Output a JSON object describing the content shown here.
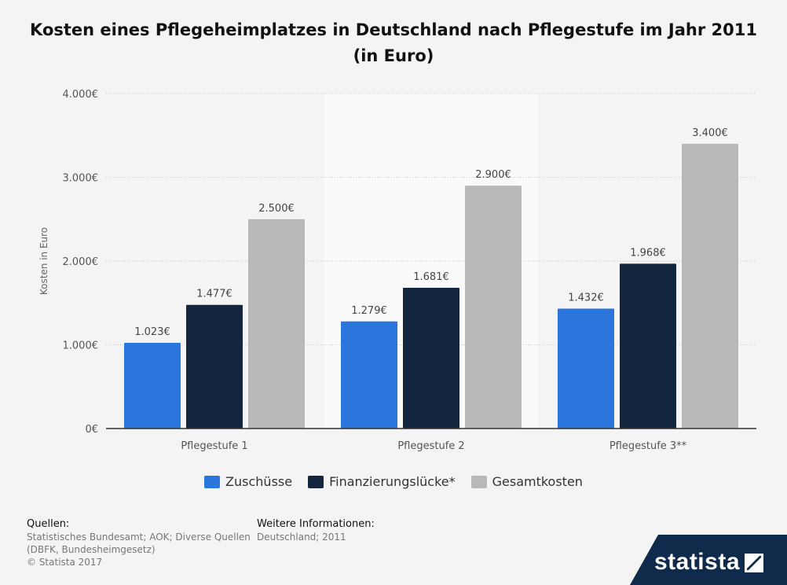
{
  "title": "Kosten eines Pflegeheimplatzes in Deutschland nach Pflegestufe im Jahr 2011 (in Euro)",
  "chart_data": {
    "type": "bar",
    "title": "Kosten eines Pflegeheimplatzes in Deutschland nach Pflegestufe im Jahr 2011 (in Euro)",
    "xlabel": "",
    "ylabel": "Kosten in Euro",
    "ylim": [
      0,
      4000
    ],
    "yticks": [
      0,
      1000,
      2000,
      3000,
      4000
    ],
    "ytick_labels": [
      "0€",
      "1.000€",
      "2.000€",
      "3.000€",
      "4.000€"
    ],
    "categories": [
      "Pflegestufe 1",
      "Pflegestufe 2",
      "Pflegestufe 3**"
    ],
    "series": [
      {
        "name": "Zuschüsse",
        "color": "#2a76dd",
        "values": [
          1023,
          1279,
          1432
        ],
        "labels": [
          "1.023€",
          "1.279€",
          "1.432€"
        ]
      },
      {
        "name": "Finanzierungslücke*",
        "color": "#13263e",
        "values": [
          1477,
          1681,
          1968
        ],
        "labels": [
          "1.477€",
          "1.681€",
          "1.968€"
        ]
      },
      {
        "name": "Gesamtkosten",
        "color": "#b9b9b9",
        "values": [
          2500,
          2900,
          3400
        ],
        "labels": [
          "2.500€",
          "2.900€",
          "3.400€"
        ]
      }
    ],
    "grid": true,
    "legend": "bottom-center"
  },
  "footer": {
    "sources_heading": "Quellen:",
    "sources_line1": "Statistisches Bundesamt; AOK; Diverse Quellen",
    "sources_line2": "(DBFK, Bundesheimgesetz)",
    "copyright": "© Statista 2017",
    "info_heading": "Weitere Informationen:",
    "info_text": "Deutschland; 2011"
  },
  "brand": {
    "name": "statista"
  }
}
